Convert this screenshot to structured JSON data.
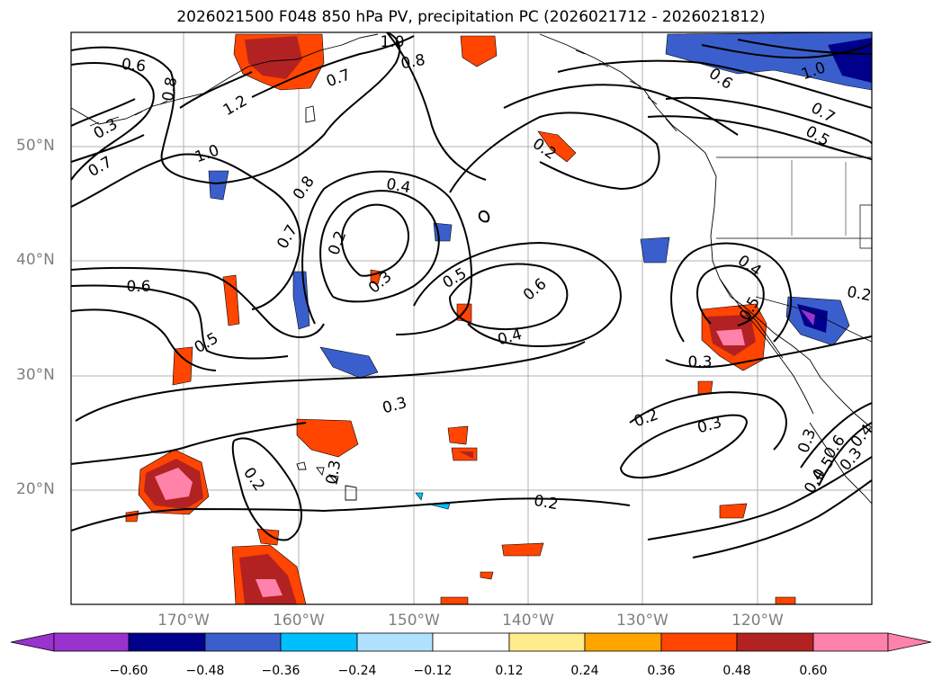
{
  "title": "2026021500 F048 850 hPa PV, precipitation PC (2026021712 - 2026021812)",
  "lat_labels": [
    "50°N",
    "40°N",
    "30°N",
    "20°N"
  ],
  "lon_labels": [
    "170°W",
    "160°W",
    "150°W",
    "140°W",
    "130°W",
    "120°W"
  ],
  "colorbar": {
    "ticks": [
      "−0.60",
      "−0.48",
      "−0.36",
      "−0.24",
      "−0.12",
      "0.12",
      "0.24",
      "0.36",
      "0.48",
      "0.60"
    ],
    "colors": [
      "#9a32cd",
      "#00008b",
      "#3a5fcd",
      "#00bfff",
      "#b0e2ff",
      "#ffffff",
      "#ffec8b",
      "#ffa500",
      "#ff4500",
      "#b22222",
      "#ff82ab"
    ]
  },
  "contour_labels": [
    "0.6",
    "0.8",
    "1.2",
    "1.0",
    "0.7",
    "0.3",
    "0.5",
    "0.8",
    "0.7",
    "0.6",
    "0.2",
    "0.3",
    "0.4",
    "0.2",
    "0.5",
    "0.6",
    "0.4",
    "0.3",
    "0.2",
    "0.3",
    "0.2",
    "0.2",
    "0.3",
    "0.4",
    "0.5",
    "0.3",
    "1.0",
    "0.8",
    "1.0",
    "0.7",
    "0.6",
    "0.7",
    "0.5",
    "0.4",
    "0.2",
    "0.3",
    "0.6",
    "0.5",
    "0.4",
    "0.3"
  ]
}
